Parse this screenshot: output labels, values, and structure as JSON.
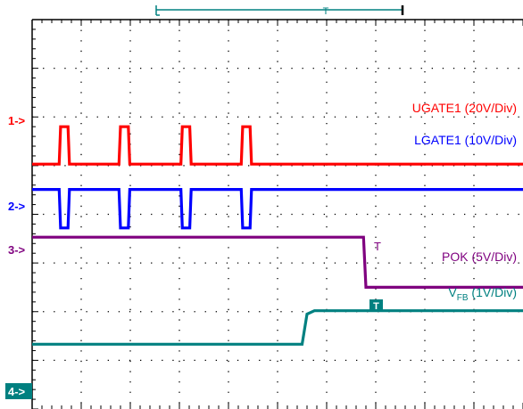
{
  "chart_data": {
    "type": "line",
    "title": "",
    "xlabel": "",
    "ylabel": "",
    "grid": true,
    "divisions": {
      "x": 10,
      "y": 8
    },
    "x_range": [
      0,
      10
    ],
    "y_range": [
      0,
      8
    ],
    "series": [
      {
        "name": "UGATE1 (20V/Div)",
        "marker": "1->",
        "color": "#ff0000",
        "points": [
          [
            0,
            5.03
          ],
          [
            0.55,
            5.03
          ],
          [
            0.58,
            5.8
          ],
          [
            0.73,
            5.8
          ],
          [
            0.76,
            5.03
          ],
          [
            1.77,
            5.03
          ],
          [
            1.8,
            5.8
          ],
          [
            1.96,
            5.8
          ],
          [
            1.99,
            5.03
          ],
          [
            3.03,
            5.03
          ],
          [
            3.06,
            5.8
          ],
          [
            3.21,
            5.8
          ],
          [
            3.24,
            5.03
          ],
          [
            4.26,
            5.03
          ],
          [
            4.29,
            5.8
          ],
          [
            4.44,
            5.8
          ],
          [
            4.47,
            5.03
          ],
          [
            10,
            5.03
          ]
        ]
      },
      {
        "name": "LGATE1 (10V/Div)",
        "marker": "2->",
        "color": "#0000ff",
        "points": [
          [
            0,
            4.51
          ],
          [
            0.55,
            4.51
          ],
          [
            0.58,
            3.72
          ],
          [
            0.73,
            3.72
          ],
          [
            0.76,
            4.51
          ],
          [
            1.77,
            4.51
          ],
          [
            1.8,
            3.72
          ],
          [
            1.96,
            3.72
          ],
          [
            1.99,
            4.51
          ],
          [
            3.03,
            4.51
          ],
          [
            3.06,
            3.72
          ],
          [
            3.21,
            3.72
          ],
          [
            3.24,
            4.51
          ],
          [
            4.26,
            4.51
          ],
          [
            4.29,
            3.72
          ],
          [
            4.44,
            3.72
          ],
          [
            4.47,
            4.51
          ],
          [
            10,
            4.51
          ]
        ]
      },
      {
        "name": "POK (5V/Div)",
        "marker": "3->",
        "color": "#7f007f",
        "points": [
          [
            0,
            3.53
          ],
          [
            6.75,
            3.53
          ],
          [
            6.8,
            2.5
          ],
          [
            10,
            2.5
          ]
        ]
      },
      {
        "name_main": "V",
        "name_sub": "FB",
        "name_tail": " (1V/Div)",
        "marker": "4->",
        "color": "#008080",
        "points": [
          [
            0,
            1.33
          ],
          [
            5.5,
            1.33
          ],
          [
            5.6,
            1.95
          ],
          [
            5.75,
            2.02
          ],
          [
            10,
            2.02
          ]
        ]
      }
    ],
    "trigger_marker": "T",
    "level_marker": "T"
  }
}
